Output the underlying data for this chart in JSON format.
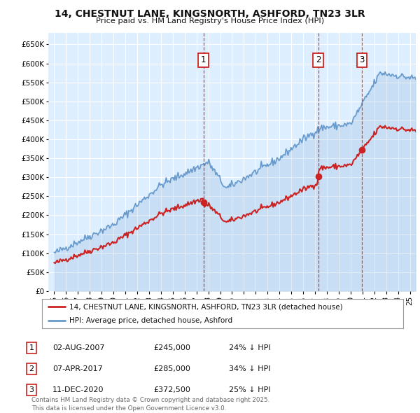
{
  "title": "14, CHESTNUT LANE, KINGSNORTH, ASHFORD, TN23 3LR",
  "subtitle": "Price paid vs. HM Land Registry's House Price Index (HPI)",
  "background_color": "#ffffff",
  "plot_bg_color": "#ddeeff",
  "grid_color": "#ffffff",
  "hpi_color": "#6699cc",
  "price_color": "#cc2222",
  "sale_line_color": "#cc2222",
  "ylim": [
    0,
    680000
  ],
  "yticks": [
    0,
    50000,
    100000,
    150000,
    200000,
    250000,
    300000,
    350000,
    400000,
    450000,
    500000,
    550000,
    600000,
    650000
  ],
  "ytick_labels": [
    "£0",
    "£50K",
    "£100K",
    "£150K",
    "£200K",
    "£250K",
    "£300K",
    "£350K",
    "£400K",
    "£450K",
    "£500K",
    "£550K",
    "£600K",
    "£650K"
  ],
  "xlim_start": 1994.5,
  "xlim_end": 2025.5,
  "sales": [
    {
      "date": 2007.58,
      "price": 245000,
      "label": "1"
    },
    {
      "date": 2017.27,
      "price": 285000,
      "label": "2"
    },
    {
      "date": 2020.95,
      "price": 372500,
      "label": "3"
    }
  ],
  "legend_house_label": "14, CHESTNUT LANE, KINGSNORTH, ASHFORD, TN23 3LR (detached house)",
  "legend_hpi_label": "HPI: Average price, detached house, Ashford",
  "table_entries": [
    {
      "num": "1",
      "date": "02-AUG-2007",
      "price": "£245,000",
      "pct": "24% ↓ HPI"
    },
    {
      "num": "2",
      "date": "07-APR-2017",
      "price": "£285,000",
      "pct": "34% ↓ HPI"
    },
    {
      "num": "3",
      "date": "11-DEC-2020",
      "price": "£372,500",
      "pct": "25% ↓ HPI"
    }
  ],
  "footer": "Contains HM Land Registry data © Crown copyright and database right 2025.\nThis data is licensed under the Open Government Licence v3.0."
}
